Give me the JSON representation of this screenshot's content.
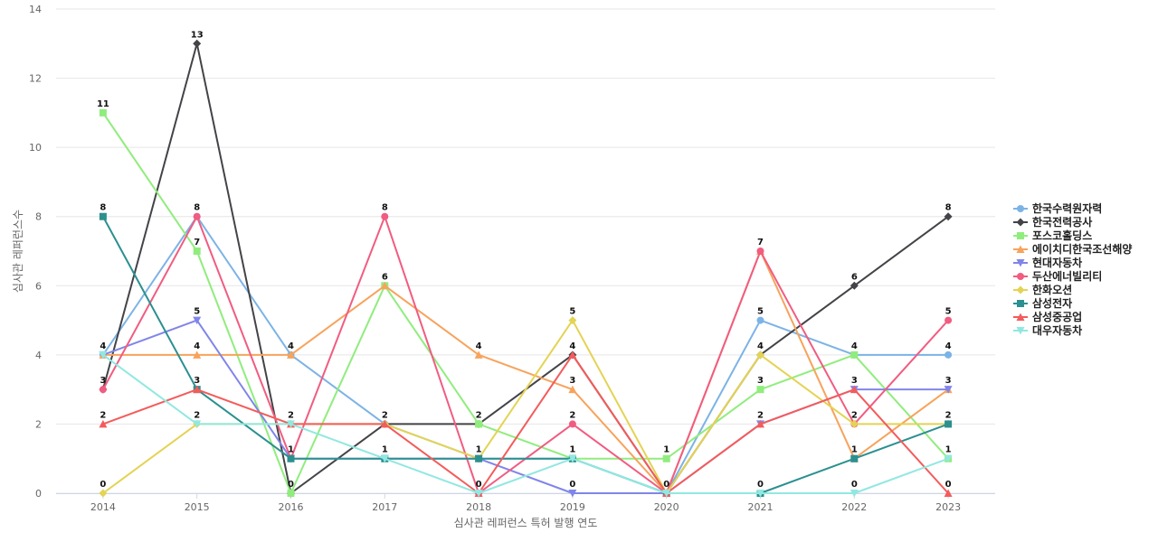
{
  "chart_data": {
    "type": "line",
    "title": "",
    "xlabel": "심사관 레퍼런스 특허 발행 연도",
    "ylabel": "심사관 레퍼런스수",
    "x": [
      "2014",
      "2015",
      "2016",
      "2017",
      "2018",
      "2019",
      "2020",
      "2021",
      "2022",
      "2023"
    ],
    "ylim": [
      0,
      14
    ],
    "yticks": [
      0,
      2,
      4,
      6,
      8,
      10,
      12,
      14
    ],
    "grid": true,
    "legend": "right",
    "series": [
      {
        "name": "한국수력원자력",
        "color": "#7cb3e6",
        "marker": "circle",
        "values": [
          4,
          8,
          4,
          2,
          1,
          1,
          0,
          5,
          4,
          4
        ]
      },
      {
        "name": "한국전력공사",
        "color": "#434348",
        "marker": "diamond",
        "values": [
          3,
          13,
          0,
          2,
          2,
          4,
          0,
          4,
          6,
          8
        ]
      },
      {
        "name": "포스코홀딩스",
        "color": "#90ed7d",
        "marker": "square",
        "values": [
          11,
          7,
          0,
          6,
          2,
          1,
          1,
          3,
          4,
          1
        ]
      },
      {
        "name": "에이치디한국조선해양",
        "color": "#f7a35c",
        "marker": "triangle",
        "values": [
          4,
          4,
          4,
          6,
          4,
          3,
          0,
          7,
          1,
          3
        ]
      },
      {
        "name": "현대자동차",
        "color": "#8085e9",
        "marker": "triangle-down",
        "values": [
          4,
          5,
          1,
          1,
          1,
          0,
          0,
          2,
          3,
          3
        ]
      },
      {
        "name": "두산에너빌리티",
        "color": "#f15c80",
        "marker": "circle",
        "values": [
          3,
          8,
          1,
          8,
          0,
          2,
          0,
          7,
          2,
          5
        ]
      },
      {
        "name": "한화오션",
        "color": "#e4d354",
        "marker": "diamond",
        "values": [
          0,
          2,
          2,
          2,
          1,
          5,
          0,
          4,
          2,
          2
        ]
      },
      {
        "name": "삼성전자",
        "color": "#2b908f",
        "marker": "square",
        "values": [
          8,
          3,
          1,
          1,
          1,
          1,
          0,
          0,
          1,
          2
        ]
      },
      {
        "name": "삼성중공업",
        "color": "#f45b5b",
        "marker": "triangle",
        "values": [
          2,
          3,
          2,
          2,
          0,
          4,
          0,
          2,
          3,
          0
        ]
      },
      {
        "name": "대우자동차",
        "color": "#91e8e1",
        "marker": "triangle-down",
        "values": [
          4,
          2,
          2,
          1,
          0,
          1,
          0,
          0,
          0,
          1
        ]
      }
    ]
  }
}
